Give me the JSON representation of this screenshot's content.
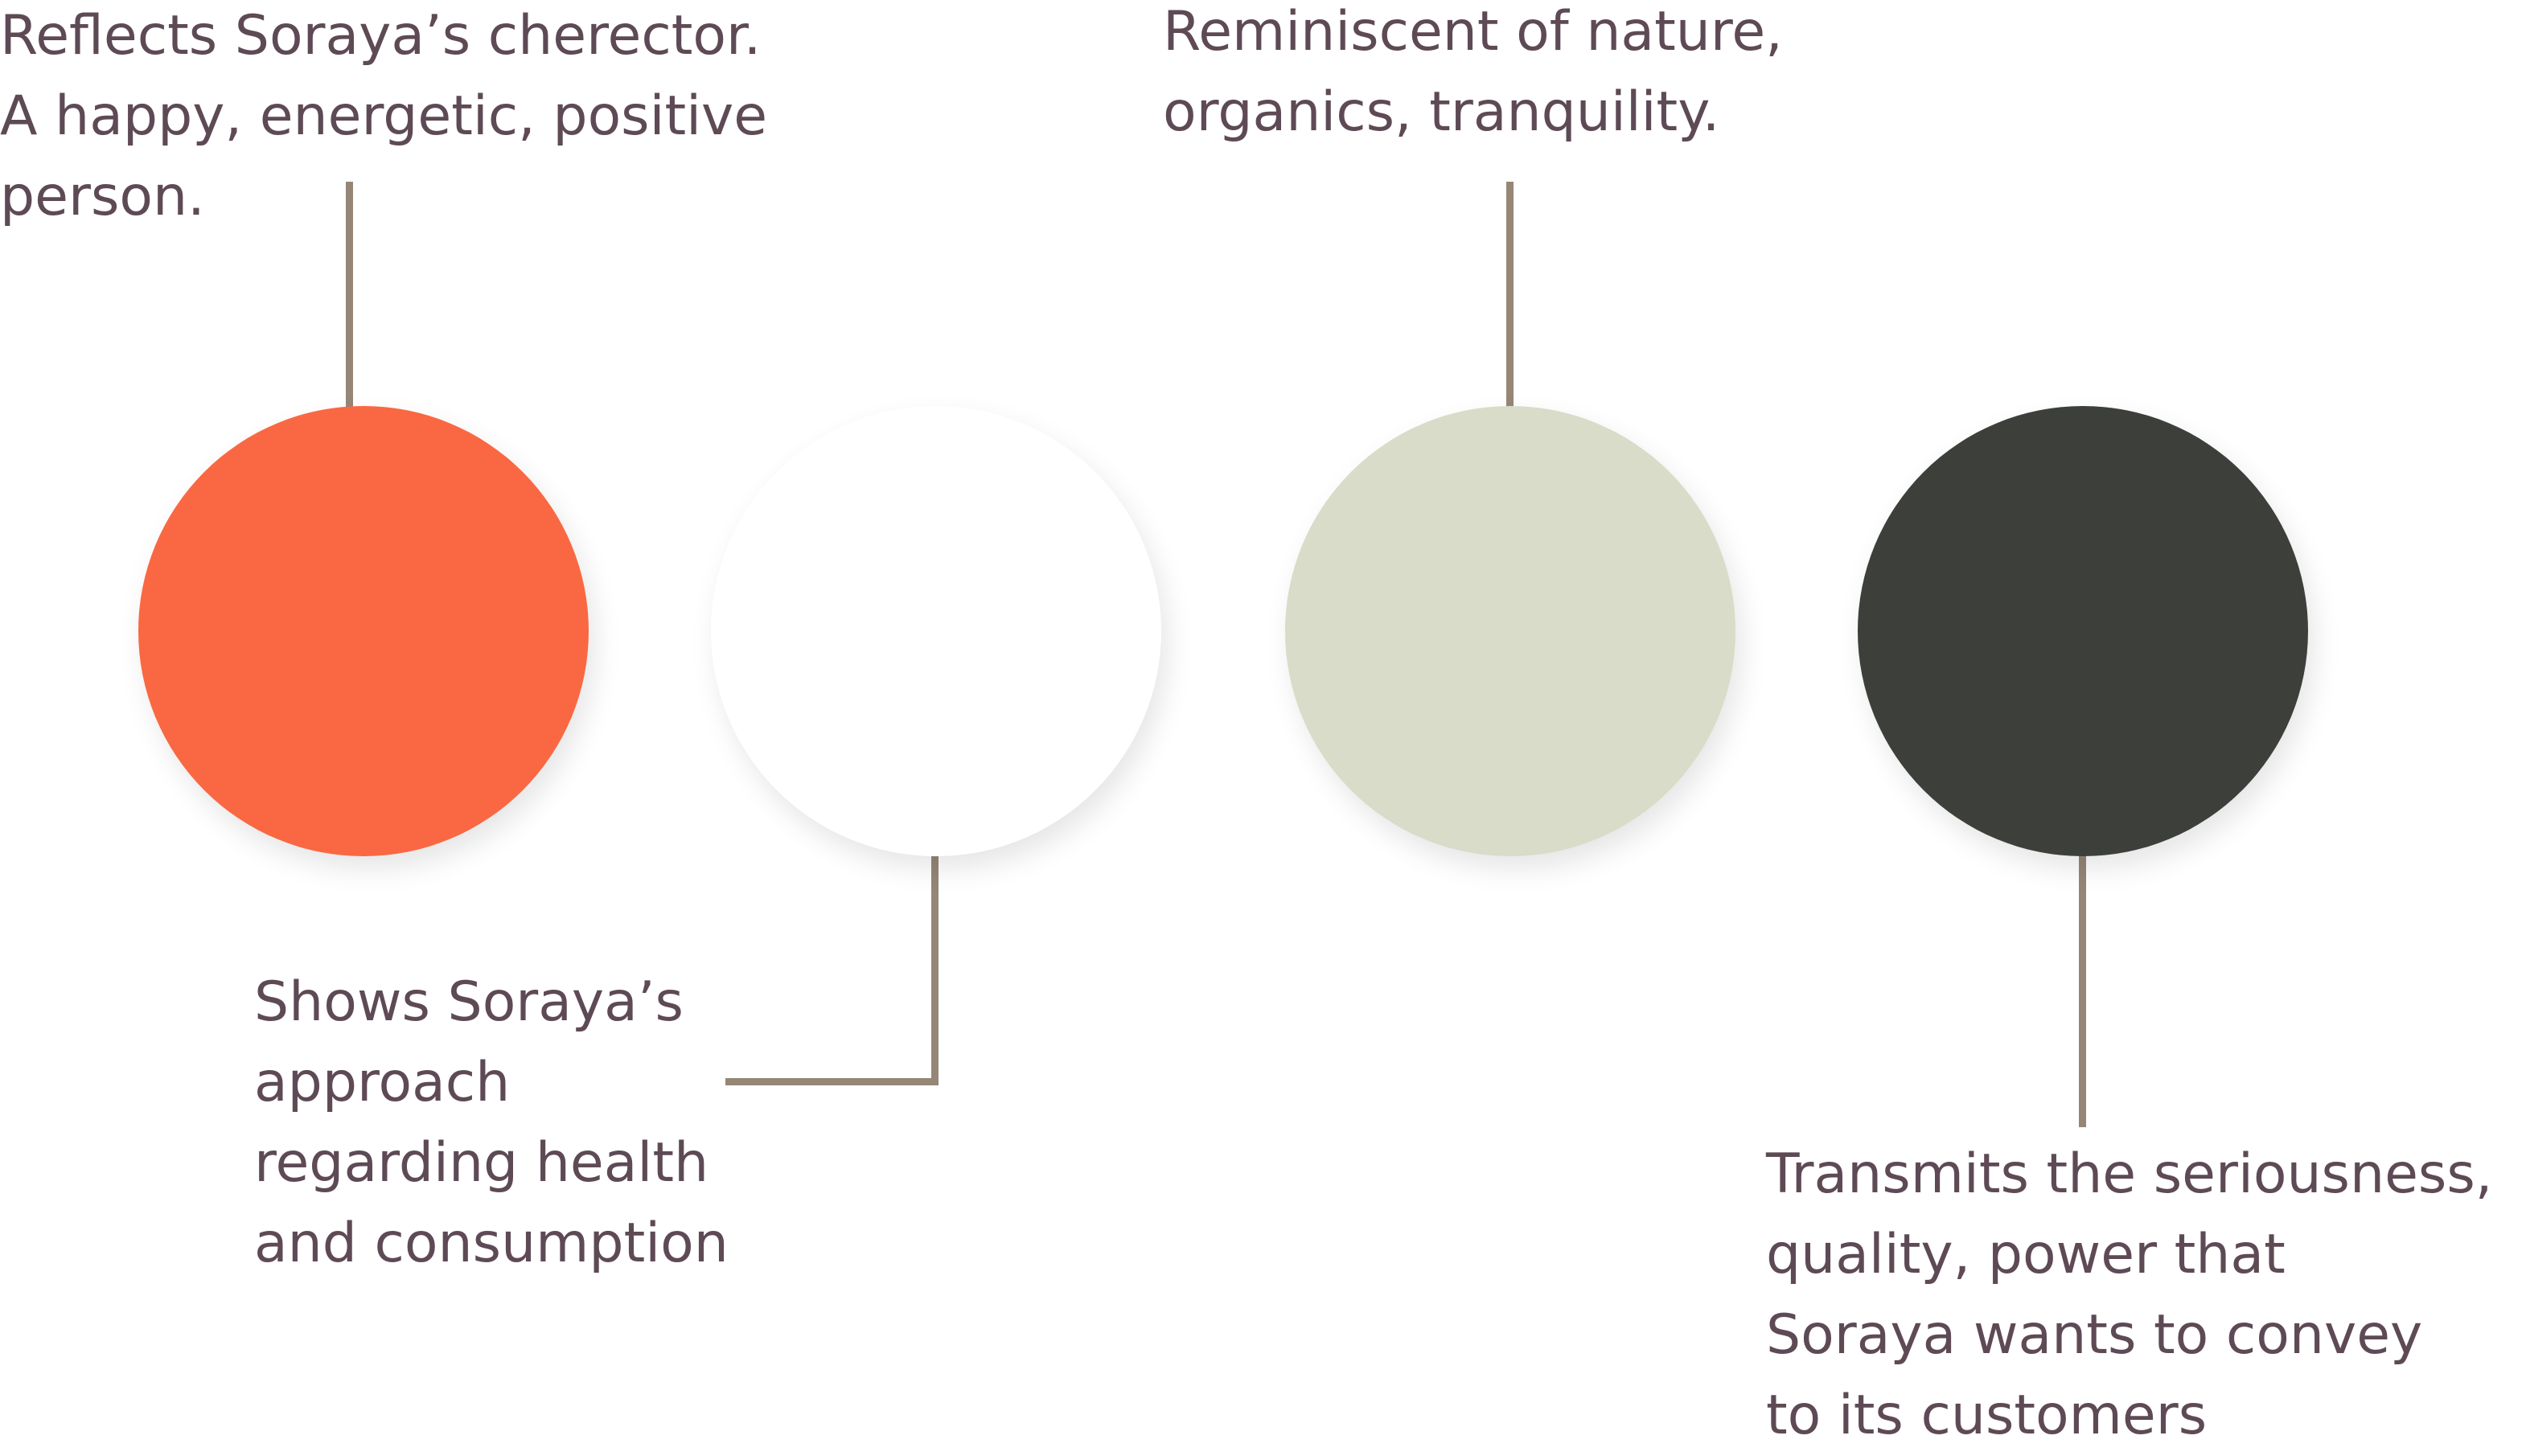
{
  "swatches": [
    {
      "id": "orange",
      "color": "#f96842",
      "caption": [
        "Reflects Soraya’s cherector.",
        "A happy, energetic, positive",
        "person."
      ]
    },
    {
      "id": "white",
      "color": "#ffffff",
      "caption": [
        "Shows Soraya’s",
        "approach",
        "regarding health",
        "and consumption"
      ]
    },
    {
      "id": "sage",
      "color": "#d8dcc8",
      "caption": [
        "Reminiscent of nature,",
        "organics, tranquility."
      ]
    },
    {
      "id": "charcoal",
      "color": "#3d3f3b",
      "caption": [
        "Transmits the seriousness,",
        "quality, power that",
        "Soraya wants to convey",
        "to its customers"
      ]
    }
  ],
  "connector_color": "#958676",
  "text_color": "#5e4a55"
}
